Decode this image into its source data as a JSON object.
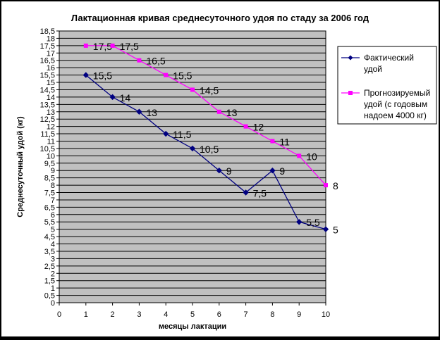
{
  "chart_data": {
    "type": "line",
    "title": "Лактационная кривая среднесуточного удоя по стаду за 2006 год",
    "xlabel": "месяцы лактации",
    "ylabel": "Среднесуточный удой (кг)",
    "xlim": [
      0,
      10
    ],
    "ylim": [
      0,
      18.5
    ],
    "x_ticks": [
      "0",
      "1",
      "2",
      "3",
      "4",
      "5",
      "6",
      "7",
      "8",
      "9",
      "10"
    ],
    "y_ticks": [
      "0",
      "0,5",
      "1",
      "1,5",
      "2",
      "2,5",
      "3",
      "3,5",
      "4",
      "4,5",
      "5",
      "5,5",
      "6",
      "6,5",
      "7",
      "7,5",
      "8",
      "8,5",
      "9",
      "9,5",
      "10",
      "10,5",
      "11",
      "11,5",
      "12",
      "12,5",
      "13",
      "13,5",
      "14",
      "14,5",
      "15",
      "15,5",
      "16",
      "16,5",
      "17",
      "17,5",
      "18",
      "18,5"
    ],
    "grid": true,
    "plot_background": "#c0c0c0",
    "legend_position": "right",
    "series": [
      {
        "name": "Фактический удой",
        "legend_lines": [
          "Фактический",
          "удой"
        ],
        "color": "#000080",
        "marker": "diamond",
        "x": [
          1,
          2,
          3,
          4,
          5,
          6,
          7,
          8,
          9,
          10
        ],
        "values": [
          15.5,
          14,
          13,
          11.5,
          10.5,
          9,
          7.5,
          9,
          5.5,
          5
        ],
        "labels": [
          "15,5",
          "14",
          "13",
          "11,5",
          "10,5",
          "9",
          "7,5",
          "9",
          "5,5",
          "5"
        ]
      },
      {
        "name": "Прогнозируемый удой (с годовым надоем 4000 кг)",
        "legend_lines": [
          "Прогнозируемый",
          "удой (с годовым",
          "надоем 4000 кг)"
        ],
        "color": "#ff00ff",
        "marker": "square",
        "x": [
          1,
          2,
          3,
          4,
          5,
          6,
          7,
          8,
          9,
          10
        ],
        "values": [
          17.5,
          17.5,
          16.5,
          15.5,
          14.5,
          13,
          12,
          11,
          10,
          8
        ],
        "labels": [
          "17,5",
          "17,5",
          "16,5",
          "15,5",
          "14,5",
          "13",
          "12",
          "11",
          "10",
          "8"
        ]
      }
    ]
  }
}
